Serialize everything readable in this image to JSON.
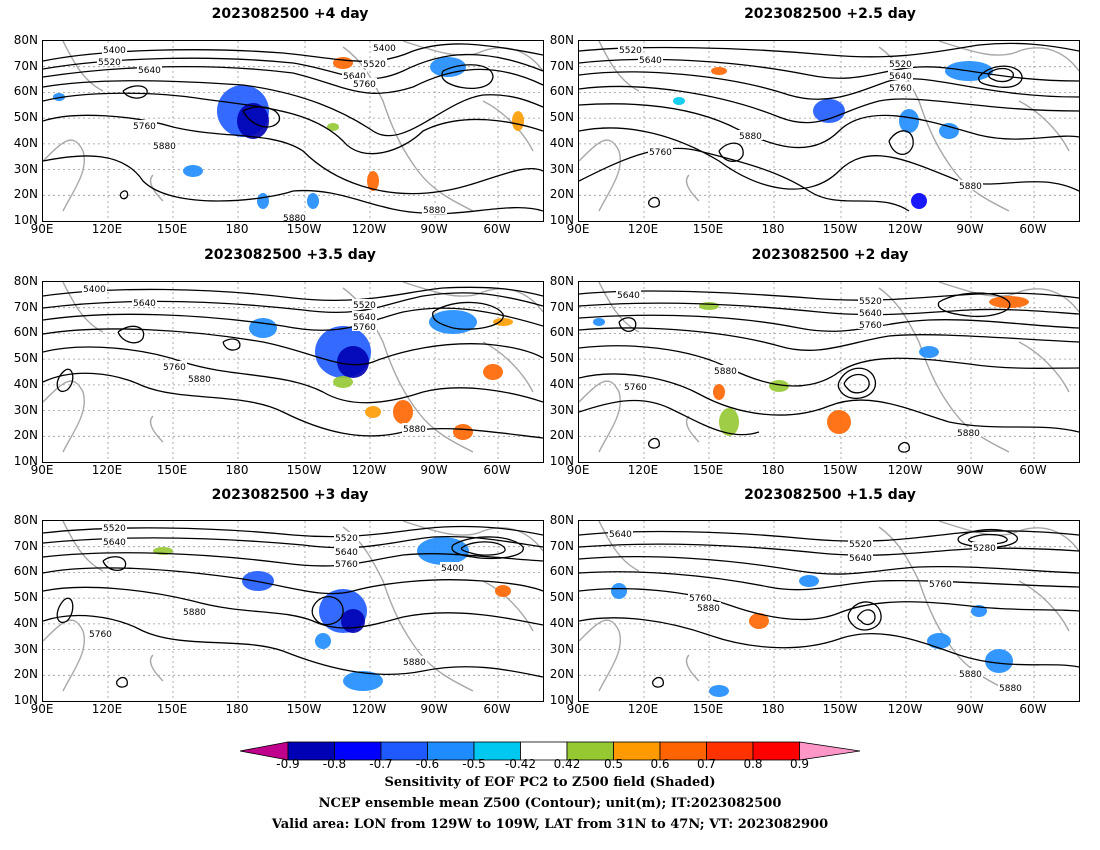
{
  "panels": [
    {
      "title": "2023082500  +4 day",
      "contour_labels": [
        "5400",
        "5520",
        "5640",
        "5400",
        "5520",
        "5640",
        "5760",
        "5760",
        "5880",
        "5880",
        "5880"
      ],
      "lat_labels": [
        "80N",
        "70N",
        "60N",
        "50N",
        "40N",
        "30N",
        "20N",
        "10N"
      ],
      "lon_labels": [
        "90E",
        "120E",
        "150E",
        "180",
        "150W",
        "120W",
        "90W",
        "60W"
      ]
    },
    {
      "title": "2023082500  +2.5 day",
      "contour_labels": [
        "5520",
        "5640",
        "5520",
        "5640",
        "5760",
        "5880",
        "5760",
        "5880"
      ],
      "lat_labels": [
        "80N",
        "70N",
        "60N",
        "50N",
        "40N",
        "30N",
        "20N",
        "10N"
      ],
      "lon_labels": [
        "90E",
        "120E",
        "150E",
        "180",
        "150W",
        "120W",
        "90W",
        "60W"
      ]
    },
    {
      "title": "2023082500  +3.5 day",
      "contour_labels": [
        "5400",
        "5640",
        "5520",
        "5640",
        "5760",
        "5760",
        "5880",
        "5880"
      ],
      "lat_labels": [
        "80N",
        "70N",
        "60N",
        "50N",
        "40N",
        "30N",
        "20N",
        "10N"
      ],
      "lon_labels": [
        "90E",
        "120E",
        "150E",
        "180",
        "150W",
        "120W",
        "90W",
        "60W"
      ]
    },
    {
      "title": "2023082500  +2 day",
      "contour_labels": [
        "5640",
        "5520",
        "5640",
        "5760",
        "5880",
        "5760",
        "5880"
      ],
      "lat_labels": [
        "80N",
        "70N",
        "60N",
        "50N",
        "40N",
        "30N",
        "20N",
        "10N"
      ],
      "lon_labels": [
        "90E",
        "120E",
        "150E",
        "180",
        "150W",
        "120W",
        "90W",
        "60W"
      ]
    },
    {
      "title": "2023082500  +3 day",
      "contour_labels": [
        "5520",
        "5640",
        "5520",
        "5640",
        "5760",
        "5400",
        "5880",
        "5760",
        "5880"
      ],
      "lat_labels": [
        "80N",
        "70N",
        "60N",
        "50N",
        "40N",
        "30N",
        "20N",
        "10N"
      ],
      "lon_labels": [
        "90E",
        "120E",
        "150E",
        "180",
        "150W",
        "120W",
        "90W",
        "60W"
      ]
    },
    {
      "title": "2023082500  +1.5 day",
      "contour_labels": [
        "5640",
        "5520",
        "5280",
        "5640",
        "5760",
        "5760",
        "5880",
        "5880",
        "5880"
      ],
      "lat_labels": [
        "80N",
        "70N",
        "60N",
        "50N",
        "40N",
        "30N",
        "20N",
        "10N"
      ],
      "lon_labels": [
        "90E",
        "120E",
        "150E",
        "180",
        "150W",
        "120W",
        "90W",
        "60W"
      ]
    }
  ],
  "colorbar": {
    "ticks": [
      "-0.9",
      "-0.8",
      "-0.7",
      "-0.6",
      "-0.5",
      "-0.42",
      "0.42",
      "0.5",
      "0.6",
      "0.7",
      "0.8",
      "0.9"
    ],
    "colors": [
      "#c0008c",
      "#0000b4",
      "#0000ff",
      "#1e5aff",
      "#1e8cff",
      "#00c8f0",
      "#ffffff",
      "#96c832",
      "#ff9b00",
      "#ff6400",
      "#ff3200",
      "#ff0000",
      "#ff96c8"
    ]
  },
  "captions": {
    "line1": "Sensitivity of EOF PC2 to Z500 field (Shaded)",
    "line2": "NCEP ensemble mean Z500 (Contour); unit(m); IT:2023082500",
    "line3": "Valid area: LON from 129W to 109W, LAT from 31N to 47N; VT: 2023082900"
  }
}
